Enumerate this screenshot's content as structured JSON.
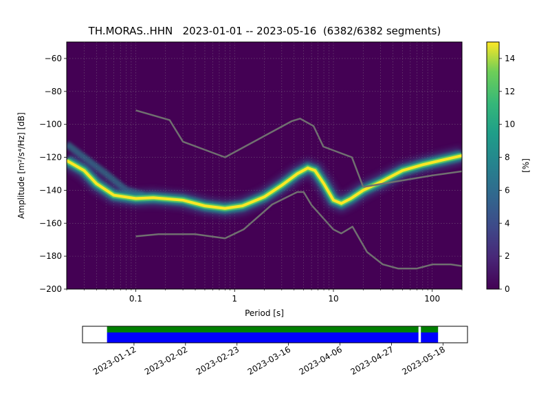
{
  "title": "TH.MORAS..HHN   2023-01-01 -- 2023-05-16  (6382/6382 segments)",
  "chart_data": [
    {
      "type": "heatmap",
      "title": "TH.MORAS..HHN   2023-01-01 -- 2023-05-16  (6382/6382 segments)",
      "xlabel": "Period [s]",
      "ylabel": "Amplitude [m²/s⁴/Hz] [dB]",
      "xscale": "log",
      "xlim": [
        0.02,
        200
      ],
      "ylim": [
        -200,
        -50
      ],
      "xticks": [
        {
          "value": 0.1,
          "label": "0.1"
        },
        {
          "value": 1,
          "label": "1"
        },
        {
          "value": 10,
          "label": "10"
        },
        {
          "value": 100,
          "label": "100"
        }
      ],
      "yticks": [
        {
          "value": -60,
          "label": "−60"
        },
        {
          "value": -80,
          "label": "−80"
        },
        {
          "value": -100,
          "label": "−100"
        },
        {
          "value": -120,
          "label": "−120"
        },
        {
          "value": -140,
          "label": "−140"
        },
        {
          "value": -160,
          "label": "−160"
        },
        {
          "value": -180,
          "label": "−180"
        },
        {
          "value": -200,
          "label": "−200"
        }
      ],
      "grid": true,
      "colormap": "viridis",
      "colorbar": {
        "label": "[%]",
        "range": [
          0,
          15
        ],
        "ticks": [
          0,
          2,
          4,
          6,
          8,
          10,
          12,
          14
        ]
      },
      "noise_models": {
        "color": "#707070",
        "high": {
          "x": [
            0.1,
            0.22,
            0.3,
            0.8,
            3.8,
            4.6,
            6.3,
            7.9,
            15.4,
            20
          ],
          "y": [
            -91.5,
            -97.4,
            -110.5,
            -120,
            -98,
            -96.5,
            -101,
            -113.5,
            -120,
            -138
          ]
        },
        "high_tail": {
          "x": [
            20,
            100,
            200
          ],
          "y": [
            -138,
            -131,
            -128.5
          ]
        },
        "low": {
          "x": [
            0.1,
            0.17,
            0.4,
            0.8,
            1.24,
            2.4,
            4.3,
            5,
            6,
            10,
            12,
            15.6,
            21.9,
            31.6,
            45,
            70,
            101,
            154,
            200
          ],
          "y": [
            -168,
            -166.7,
            -166.7,
            -169.2,
            -163.7,
            -148.6,
            -141.1,
            -141.1,
            -149,
            -163.8,
            -166.2,
            -162.1,
            -177.5,
            -185,
            -187.5,
            -187.5,
            -185,
            -185,
            -186
          ]
        }
      },
      "mode_curve": {
        "x": [
          0.02,
          0.03,
          0.04,
          0.06,
          0.1,
          0.15,
          0.3,
          0.5,
          0.8,
          1.2,
          2,
          3,
          4.3,
          5.5,
          6.5,
          8,
          10,
          12,
          15,
          20,
          30,
          50,
          80,
          120,
          200
        ],
        "y": [
          -122,
          -128,
          -136,
          -143,
          -145,
          -144.5,
          -146,
          -149.5,
          -151,
          -149.5,
          -144,
          -137,
          -130,
          -126.5,
          -128,
          -136,
          -146,
          -148,
          -145,
          -140,
          -135,
          -128,
          -124.5,
          -122,
          -119
        ]
      },
      "percent_peak": 15
    },
    {
      "type": "bar",
      "description_role": "data coverage timeline",
      "x_ticks": [
        "2023-01-12",
        "2023-02-02",
        "2023-02-23",
        "2023-03-16",
        "2023-04-06",
        "2023-04-27",
        "2023-05-18"
      ],
      "xlim": [
        "2022-12-22",
        "2023-05-28"
      ],
      "series": [
        {
          "color": "#008000",
          "intervals": [
            [
              "2023-01-01",
              "2023-05-08"
            ],
            [
              "2023-05-09",
              "2023-05-16"
            ]
          ]
        },
        {
          "color": "#0000ff",
          "intervals": [
            [
              "2023-01-01",
              "2023-05-08"
            ],
            [
              "2023-05-09",
              "2023-05-16"
            ]
          ]
        }
      ]
    }
  ]
}
